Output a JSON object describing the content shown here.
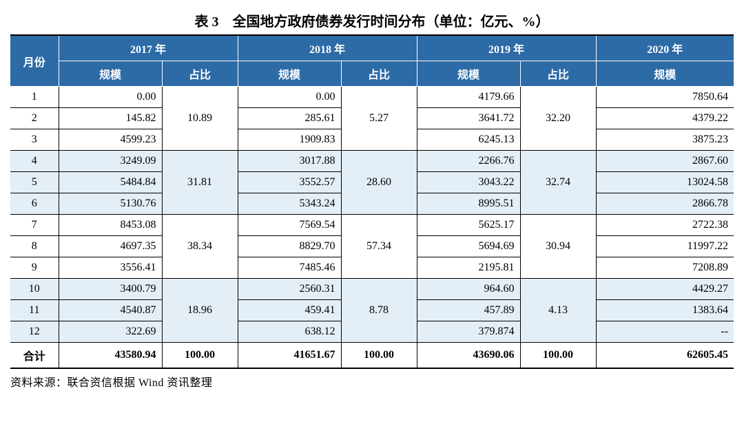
{
  "title": "表 3　全国地方政府债券发行时间分布（单位：亿元、%）",
  "colors": {
    "header_bg": "#2d6ba7",
    "header_fg": "#ffffff",
    "band_bg": "#e3eef7",
    "grid": "#000000",
    "background": "#ffffff"
  },
  "headers": {
    "month": "月份",
    "y2017": "2017 年",
    "y2018": "2018 年",
    "y2019": "2019 年",
    "y2020": "2020 年",
    "scale": "规模",
    "ratio": "占比"
  },
  "groups": [
    {
      "months": [
        "1",
        "2",
        "3"
      ],
      "band": false,
      "scale": {
        "y2017": [
          "0.00",
          "145.82",
          "4599.23"
        ],
        "y2018": [
          "0.00",
          "285.61",
          "1909.83"
        ],
        "y2019": [
          "4179.66",
          "3641.72",
          "6245.13"
        ],
        "y2020": [
          "7850.64",
          "4379.22",
          "3875.23"
        ]
      },
      "ratio": {
        "y2017": "10.89",
        "y2018": "5.27",
        "y2019": "32.20"
      }
    },
    {
      "months": [
        "4",
        "5",
        "6"
      ],
      "band": true,
      "scale": {
        "y2017": [
          "3249.09",
          "5484.84",
          "5130.76"
        ],
        "y2018": [
          "3017.88",
          "3552.57",
          "5343.24"
        ],
        "y2019": [
          "2266.76",
          "3043.22",
          "8995.51"
        ],
        "y2020": [
          "2867.60",
          "13024.58",
          "2866.78"
        ]
      },
      "ratio": {
        "y2017": "31.81",
        "y2018": "28.60",
        "y2019": "32.74"
      }
    },
    {
      "months": [
        "7",
        "8",
        "9"
      ],
      "band": false,
      "scale": {
        "y2017": [
          "8453.08",
          "4697.35",
          "3556.41"
        ],
        "y2018": [
          "7569.54",
          "8829.70",
          "7485.46"
        ],
        "y2019": [
          "5625.17",
          "5694.69",
          "2195.81"
        ],
        "y2020": [
          "2722.38",
          "11997.22",
          "7208.89"
        ]
      },
      "ratio": {
        "y2017": "38.34",
        "y2018": "57.34",
        "y2019": "30.94"
      }
    },
    {
      "months": [
        "10",
        "11",
        "12"
      ],
      "band": true,
      "scale": {
        "y2017": [
          "3400.79",
          "4540.87",
          "322.69"
        ],
        "y2018": [
          "2560.31",
          "459.41",
          "638.12"
        ],
        "y2019": [
          "964.60",
          "457.89",
          "379.874"
        ],
        "y2020": [
          "4429.27",
          "1383.64",
          "--"
        ]
      },
      "ratio": {
        "y2017": "18.96",
        "y2018": "8.78",
        "y2019": "4.13"
      }
    }
  ],
  "total": {
    "label": "合计",
    "y2017_scale": "43580.94",
    "y2017_ratio": "100.00",
    "y2018_scale": "41651.67",
    "y2018_ratio": "100.00",
    "y2019_scale": "43690.06",
    "y2019_ratio": "100.00",
    "y2020_scale": "62605.45"
  },
  "source": "资料来源：联合资信根据 Wind 资讯整理"
}
